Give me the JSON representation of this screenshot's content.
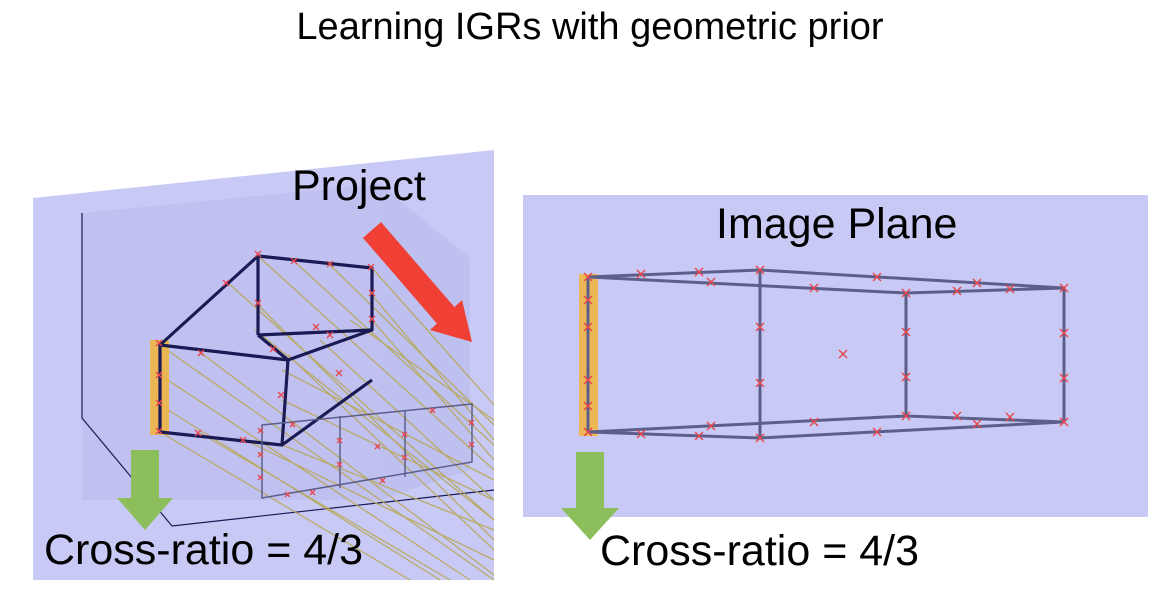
{
  "title": "Learning IGRs with geometric prior",
  "labels": {
    "project": "Project",
    "image_plane": "Image Plane",
    "cross_ratio_left": "Cross-ratio = 4/3",
    "cross_ratio_right": "Cross-ratio = 4/3"
  },
  "colors": {
    "plane_fill": "#c8caf5",
    "plane_fill_dark": "#bfc1ef",
    "edge": "#1a1a55",
    "edge_projected": "#5b5f8a",
    "ray": "#b8a85a",
    "point_marker": "#e8484f",
    "highlight": "#f2b53a",
    "project_arrow": "#f04035",
    "down_arrow": "#8cbf5c"
  },
  "icons": {
    "project_arrow": "red-diagonal-arrow",
    "down_arrow": "green-down-arrow"
  }
}
